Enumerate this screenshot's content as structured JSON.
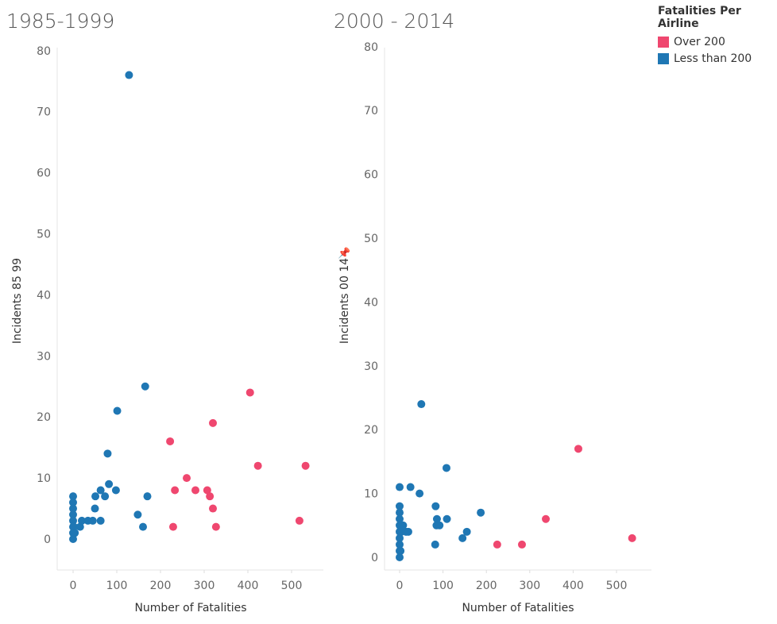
{
  "colors": {
    "over": "#ef476f",
    "less": "#1f77b4",
    "axis": "#666666"
  },
  "legend": {
    "title": "Fatalities Per Airline",
    "items": [
      {
        "label": "Over 200",
        "color": "#ef476f"
      },
      {
        "label": "Less than 200",
        "color": "#1f77b4"
      }
    ]
  },
  "pin_icon": "pin-icon",
  "chart_data": [
    {
      "type": "scatter",
      "title": "1985-1999",
      "xlabel": "Number of Fatalities",
      "ylabel": "Incidents 85 99",
      "xlim": [
        -35,
        570
      ],
      "ylim": [
        -5,
        81
      ],
      "xticks": [
        0,
        100,
        200,
        300,
        400,
        500
      ],
      "yticks": [
        0,
        10,
        20,
        30,
        40,
        50,
        60,
        70,
        80
      ],
      "series": [
        {
          "name": "Over 200",
          "color": "#ef476f",
          "points": [
            [
              405,
              24
            ],
            [
              320,
              19
            ],
            [
              222,
              16
            ],
            [
              423,
              12
            ],
            [
              532,
              12
            ],
            [
              260,
              10
            ],
            [
              233,
              8
            ],
            [
              280,
              8
            ],
            [
              307,
              8
            ],
            [
              313,
              7
            ],
            [
              320,
              5
            ],
            [
              229,
              2
            ],
            [
              327,
              2
            ],
            [
              518,
              3
            ]
          ]
        },
        {
          "name": "Less than 200",
          "color": "#1f77b4",
          "points": [
            [
              128,
              76
            ],
            [
              165,
              25
            ],
            [
              101,
              21
            ],
            [
              79,
              14
            ],
            [
              82,
              9
            ],
            [
              98,
              8
            ],
            [
              63,
              8
            ],
            [
              51,
              7
            ],
            [
              73,
              7
            ],
            [
              170,
              7
            ],
            [
              50,
              5
            ],
            [
              0,
              7
            ],
            [
              0,
              6
            ],
            [
              0,
              5
            ],
            [
              0,
              4
            ],
            [
              0,
              3
            ],
            [
              0,
              2
            ],
            [
              0,
              1
            ],
            [
              0,
              0
            ],
            [
              2,
              2
            ],
            [
              4,
              1
            ],
            [
              16,
              2
            ],
            [
              20,
              3
            ],
            [
              34,
              3
            ],
            [
              45,
              3
            ],
            [
              63,
              3
            ],
            [
              148,
              4
            ],
            [
              160,
              2
            ]
          ]
        }
      ]
    },
    {
      "type": "scatter",
      "title": "2000 - 2014",
      "xlabel": "Number of Fatalities",
      "ylabel": "Incidents 00 14",
      "xlim": [
        -35,
        570
      ],
      "ylim": [
        -2,
        81
      ],
      "xticks": [
        0,
        100,
        200,
        300,
        400,
        500
      ],
      "yticks": [
        0,
        10,
        20,
        30,
        40,
        50,
        60,
        70,
        80
      ],
      "series": [
        {
          "name": "Over 200",
          "color": "#ef476f",
          "points": [
            [
              412,
              17
            ],
            [
              337,
              6
            ],
            [
              225,
              2
            ],
            [
              282,
              2
            ],
            [
              536,
              3
            ]
          ]
        },
        {
          "name": "Less than 200",
          "color": "#1f77b4",
          "points": [
            [
              50,
              24
            ],
            [
              108,
              14
            ],
            [
              0,
              11
            ],
            [
              25,
              11
            ],
            [
              46,
              10
            ],
            [
              83,
              8
            ],
            [
              187,
              7
            ],
            [
              86,
              6
            ],
            [
              109,
              6
            ],
            [
              85,
              5
            ],
            [
              92,
              5
            ],
            [
              155,
              4
            ],
            [
              0,
              8
            ],
            [
              0,
              7
            ],
            [
              0,
              6
            ],
            [
              0,
              5
            ],
            [
              0,
              4
            ],
            [
              0,
              3
            ],
            [
              0,
              2
            ],
            [
              0,
              1
            ],
            [
              0,
              0
            ],
            [
              2,
              1
            ],
            [
              4,
              4
            ],
            [
              8,
              5
            ],
            [
              15,
              4
            ],
            [
              20,
              4
            ],
            [
              82,
              2
            ],
            [
              145,
              3
            ]
          ]
        }
      ]
    }
  ]
}
